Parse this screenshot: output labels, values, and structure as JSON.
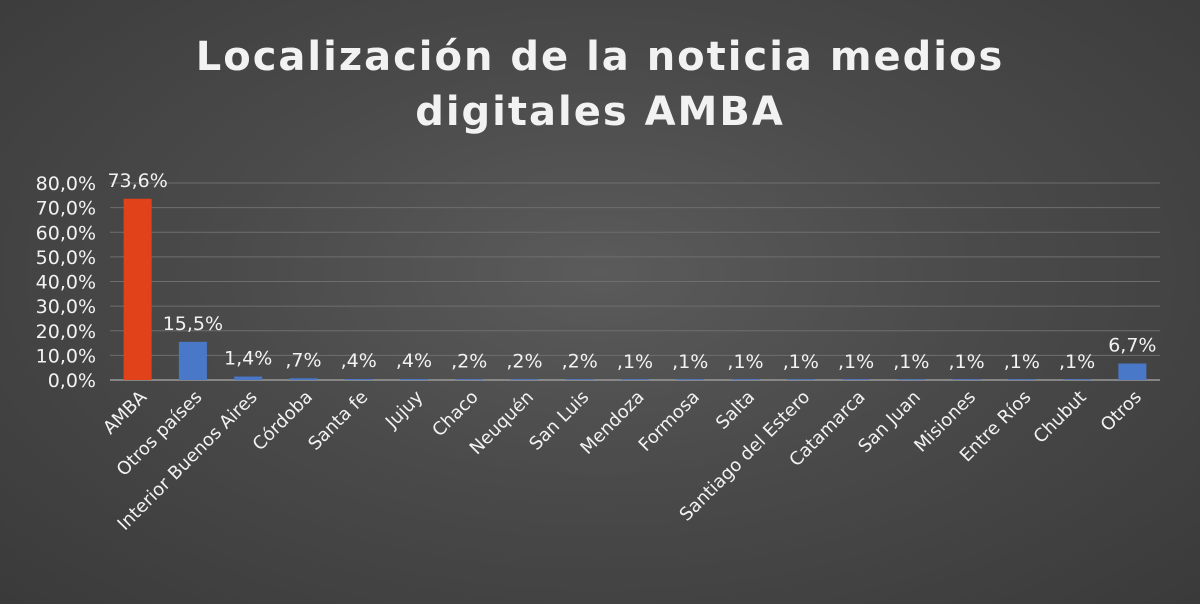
{
  "chart_data": {
    "type": "bar",
    "title": "Localización de la noticia medios digitales AMBA",
    "categories": [
      "AMBA",
      "Otros países",
      "Interior Buenos Aires",
      "Córdoba",
      "Santa fe",
      "Jujuy",
      "Chaco",
      "Neuquén",
      "San Luis",
      "Mendoza",
      "Formosa",
      "Salta",
      "Santiago del Estero",
      "Catamarca",
      "San Juan",
      "Misiones",
      "Entre Ríos",
      "Chubut",
      "Otros"
    ],
    "values": [
      73.6,
      15.5,
      1.4,
      0.7,
      0.4,
      0.4,
      0.2,
      0.2,
      0.2,
      0.1,
      0.1,
      0.1,
      0.1,
      0.1,
      0.1,
      0.1,
      0.1,
      0.1,
      6.7
    ],
    "data_labels": [
      "73,6%",
      "15,5%",
      "1,4%",
      ",7%",
      ",4%",
      ",4%",
      ",2%",
      ",2%",
      ",2%",
      ",1%",
      ",1%",
      ",1%",
      ",1%",
      ",1%",
      ",1%",
      ",1%",
      ",1%",
      ",1%",
      "6,7%"
    ],
    "ylim": [
      0,
      80
    ],
    "y_ticks": [
      "0,0%",
      "10,0%",
      "20,0%",
      "30,0%",
      "40,0%",
      "50,0%",
      "60,0%",
      "70,0%",
      "80,0%"
    ],
    "xlabel": "",
    "ylabel": "",
    "grid": true,
    "legend": "none",
    "colors": {
      "highlight": "#e2421a",
      "default": "#4a78c8",
      "text": "#f2f2f2",
      "grid": "#6e6e6e",
      "axis": "#9a9a9a"
    },
    "highlight_index": 0
  }
}
